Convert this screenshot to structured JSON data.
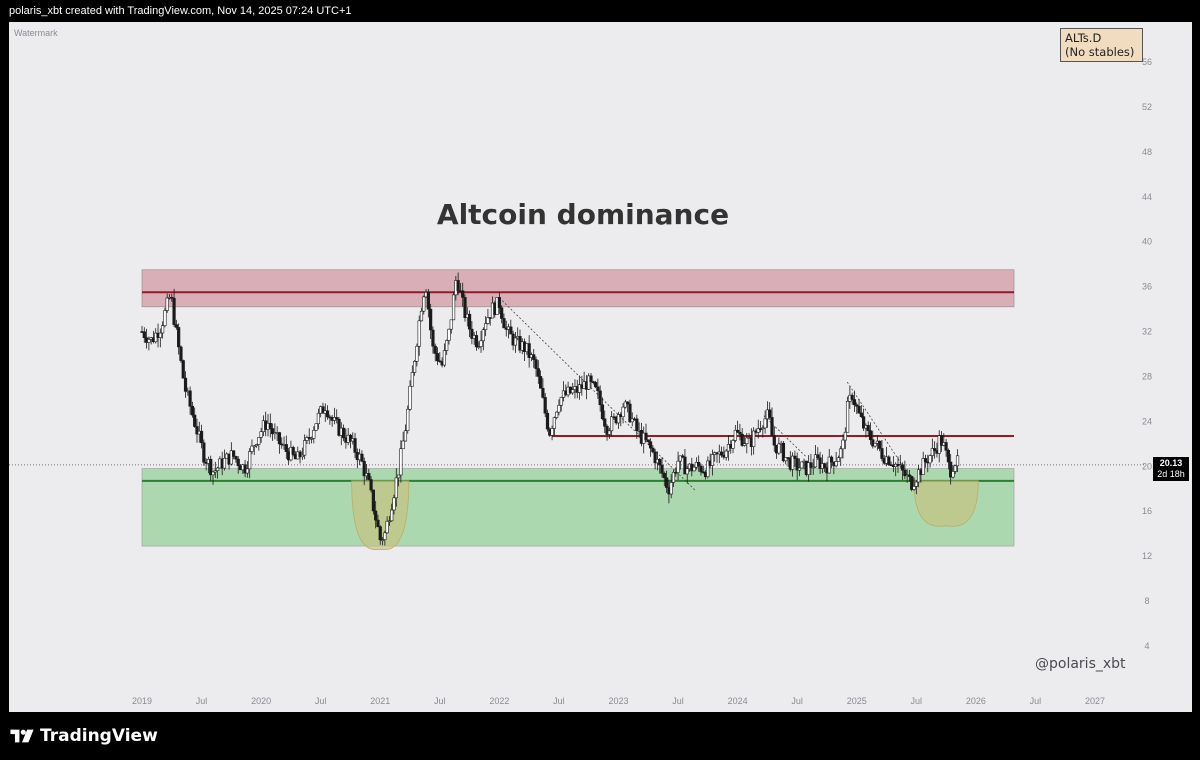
{
  "header": {
    "text": "polaris_xbt created with TradingView.com, Nov 14, 2025 07:24 UTC+1"
  },
  "watermark_label": "Watermark",
  "ticker": {
    "line1": "ALTs.D",
    "line2": "(No stables)"
  },
  "price_label": {
    "value": "20.13",
    "countdown": "2d 18h"
  },
  "handle": "@polaris_xbt",
  "footer": {
    "logo_text": "TradingView"
  },
  "colors": {
    "resistance": "#8b1e2a",
    "resistance_zone": "#d49aa3",
    "support": "#2e7d32",
    "support_zone": "#a5d6a7",
    "bowl": "#c8c17e",
    "candle": "#1a1a1a",
    "bg": "#ececee"
  },
  "chart_data": {
    "type": "candlestick",
    "title": "Altcoin dominance",
    "ylim": [
      2,
      58
    ],
    "y_ticks": [
      4,
      8,
      12,
      16,
      20,
      24,
      28,
      32,
      36,
      40,
      44,
      48,
      52,
      56
    ],
    "x_ticks": [
      "2019",
      "Jul",
      "2020",
      "Jul",
      "2021",
      "Jul",
      "2022",
      "Jul",
      "2023",
      "Jul",
      "2024",
      "Jul",
      "2025",
      "Jul",
      "2026",
      "Jul",
      "2027"
    ],
    "x_tick_dates": [
      2019.0,
      2019.5,
      2020.0,
      2020.5,
      2021.0,
      2021.5,
      2022.0,
      2022.5,
      2023.0,
      2023.5,
      2024.0,
      2024.5,
      2025.0,
      2025.5,
      2026.0,
      2026.5,
      2027.0
    ],
    "xlim": [
      2018.9,
      2027.2
    ],
    "last_price": 20.13,
    "series_path": [
      [
        2019.0,
        32.0
      ],
      [
        2019.08,
        31.2
      ],
      [
        2019.16,
        32.5
      ],
      [
        2019.24,
        35.3
      ],
      [
        2019.3,
        31.0
      ],
      [
        2019.36,
        27.0
      ],
      [
        2019.44,
        24.0
      ],
      [
        2019.52,
        21.0
      ],
      [
        2019.6,
        19.5
      ],
      [
        2019.68,
        20.4
      ],
      [
        2019.76,
        21.0
      ],
      [
        2019.86,
        19.8
      ],
      [
        2019.96,
        22.5
      ],
      [
        2020.05,
        24.0
      ],
      [
        2020.12,
        22.5
      ],
      [
        2020.2,
        21.5
      ],
      [
        2020.3,
        20.5
      ],
      [
        2020.38,
        22.0
      ],
      [
        2020.46,
        24.0
      ],
      [
        2020.54,
        25.5
      ],
      [
        2020.6,
        24.0
      ],
      [
        2020.68,
        23.0
      ],
      [
        2020.76,
        22.0
      ],
      [
        2020.84,
        20.5
      ],
      [
        2020.9,
        18.5
      ],
      [
        2020.96,
        15.5
      ],
      [
        2021.0,
        13.5
      ],
      [
        2021.04,
        14.0
      ],
      [
        2021.1,
        17.0
      ],
      [
        2021.16,
        20.0
      ],
      [
        2021.22,
        24.0
      ],
      [
        2021.28,
        29.0
      ],
      [
        2021.34,
        34.0
      ],
      [
        2021.38,
        36.5
      ],
      [
        2021.44,
        30.5
      ],
      [
        2021.52,
        29.0
      ],
      [
        2021.58,
        32.0
      ],
      [
        2021.64,
        37.0
      ],
      [
        2021.7,
        34.0
      ],
      [
        2021.76,
        32.0
      ],
      [
        2021.82,
        31.0
      ],
      [
        2021.88,
        33.0
      ],
      [
        2021.94,
        34.0
      ],
      [
        2022.0,
        34.5
      ],
      [
        2022.06,
        32.0
      ],
      [
        2022.14,
        31.0
      ],
      [
        2022.22,
        30.5
      ],
      [
        2022.3,
        29.0
      ],
      [
        2022.36,
        26.0
      ],
      [
        2022.42,
        23.0
      ],
      [
        2022.5,
        26.0
      ],
      [
        2022.58,
        26.5
      ],
      [
        2022.66,
        26.8
      ],
      [
        2022.74,
        27.5
      ],
      [
        2022.82,
        26.5
      ],
      [
        2022.9,
        23.5
      ],
      [
        2022.96,
        24.0
      ],
      [
        2023.04,
        25.5
      ],
      [
        2023.1,
        24.5
      ],
      [
        2023.16,
        23.0
      ],
      [
        2023.24,
        22.0
      ],
      [
        2023.3,
        21.0
      ],
      [
        2023.36,
        19.5
      ],
      [
        2023.42,
        18.0
      ],
      [
        2023.5,
        20.5
      ],
      [
        2023.58,
        19.8
      ],
      [
        2023.66,
        20.0
      ],
      [
        2023.74,
        19.7
      ],
      [
        2023.82,
        20.8
      ],
      [
        2023.9,
        21.5
      ],
      [
        2023.98,
        23.0
      ],
      [
        2024.04,
        22.5
      ],
      [
        2024.1,
        22.0
      ],
      [
        2024.2,
        24.0
      ],
      [
        2024.26,
        24.5
      ],
      [
        2024.3,
        22.0
      ],
      [
        2024.36,
        21.5
      ],
      [
        2024.42,
        20.5
      ],
      [
        2024.5,
        20.0
      ],
      [
        2024.58,
        19.8
      ],
      [
        2024.66,
        20.5
      ],
      [
        2024.74,
        20.0
      ],
      [
        2024.82,
        20.7
      ],
      [
        2024.88,
        21.5
      ],
      [
        2024.92,
        25.0
      ],
      [
        2024.96,
        26.5
      ],
      [
        2025.02,
        24.5
      ],
      [
        2025.08,
        23.0
      ],
      [
        2025.16,
        22.0
      ],
      [
        2025.22,
        21.0
      ],
      [
        2025.3,
        20.5
      ],
      [
        2025.38,
        19.5
      ],
      [
        2025.46,
        18.5
      ],
      [
        2025.54,
        19.8
      ],
      [
        2025.6,
        20.8
      ],
      [
        2025.66,
        21.5
      ],
      [
        2025.7,
        22.5
      ],
      [
        2025.74,
        21.5
      ],
      [
        2025.78,
        19.5
      ],
      [
        2025.82,
        20.5
      ],
      [
        2025.86,
        20.13
      ]
    ],
    "annotations": {
      "resistance_zone": {
        "y0": 34.2,
        "y1": 37.5,
        "x0": 2019.0,
        "x1": 2026.32,
        "line_y": 35.5
      },
      "mid_resistance": {
        "y": 22.7,
        "x0": 2022.44,
        "x1": 2026.32
      },
      "support_zone": {
        "y0": 12.9,
        "y1": 19.8,
        "x0": 2019.0,
        "x1": 2026.32,
        "line_y": 18.7
      },
      "trendlines": [
        {
          "x0": 2022.0,
          "y0": 35.0,
          "x1": 2023.65,
          "y1": 17.8
        },
        {
          "x0": 2024.22,
          "y0": 24.5,
          "x1": 2024.58,
          "y1": 20.8
        },
        {
          "x0": 2024.92,
          "y0": 27.5,
          "x1": 2025.42,
          "y1": 19.5
        }
      ],
      "bowls": [
        {
          "cx": 2021.0,
          "top": 18.7,
          "bottom": 12.6,
          "halfwidth": 0.24
        },
        {
          "cx": 2025.75,
          "top": 18.7,
          "bottom": 14.7,
          "halfwidth": 0.27
        }
      ]
    }
  }
}
